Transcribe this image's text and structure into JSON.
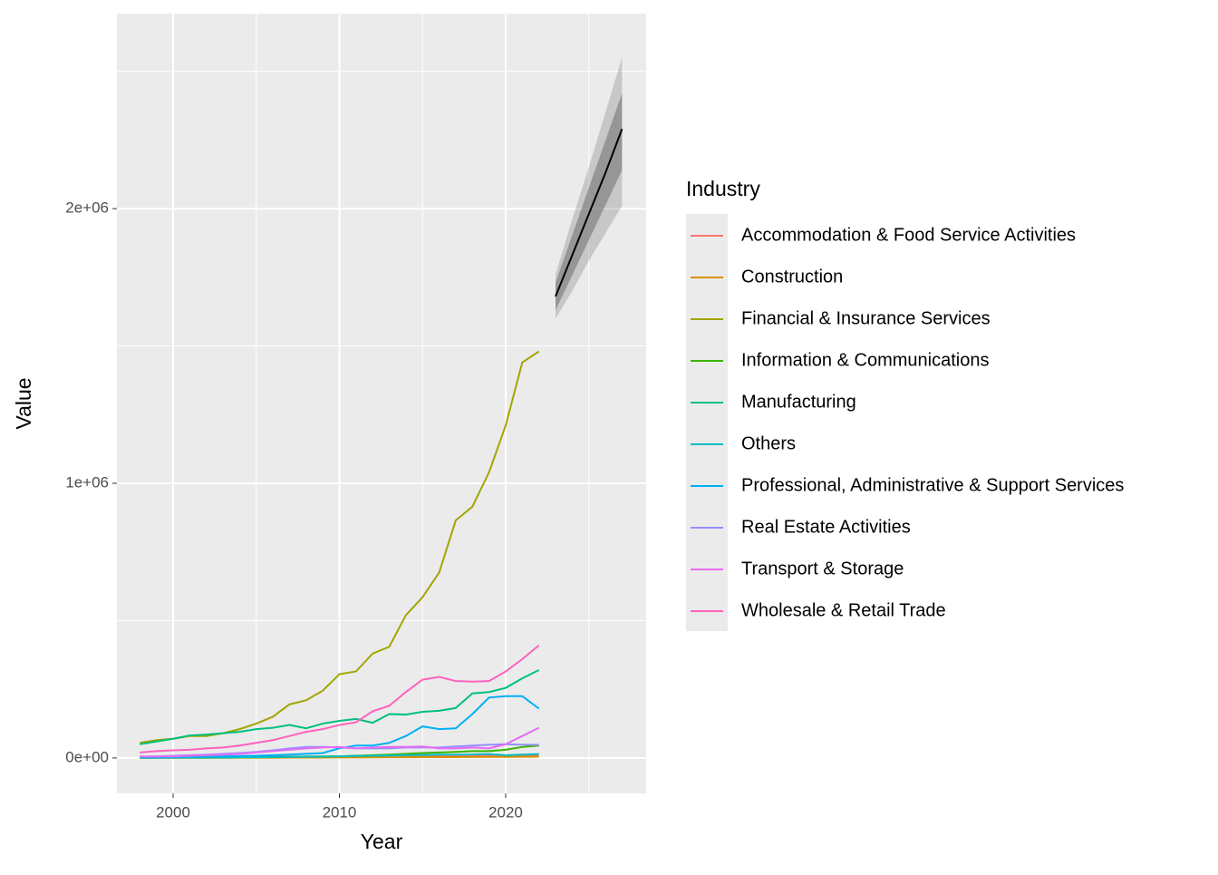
{
  "chart_data": {
    "type": "line",
    "x_label": "Year",
    "y_label": "Value",
    "legend_title": "Industry",
    "legend_position": "right",
    "grid": true,
    "xlim": [
      1996.62,
      2028.45
    ],
    "xticks": [
      2000,
      2010,
      2020
    ],
    "xminor": [
      2005,
      2015,
      2025
    ],
    "ylim": [
      -129000,
      2710000
    ],
    "yticks": [
      {
        "value": 0,
        "label": "0e+00"
      },
      {
        "value": 1000000,
        "label": "1e+06"
      },
      {
        "value": 2000000,
        "label": "2e+06"
      }
    ],
    "yminor": [
      500000,
      1500000,
      2500000
    ],
    "x": [
      1998,
      1999,
      2000,
      2001,
      2002,
      2003,
      2004,
      2005,
      2006,
      2007,
      2008,
      2009,
      2010,
      2011,
      2012,
      2013,
      2014,
      2015,
      2016,
      2017,
      2018,
      2019,
      2020,
      2021,
      2022
    ],
    "series": [
      {
        "name": "Accommodation & Food Service Activities",
        "color": "#F8766D",
        "values": [
          2000,
          2000,
          2500,
          3000,
          3000,
          3500,
          4000,
          4000,
          4500,
          5000,
          5000,
          5000,
          5500,
          6000,
          6000,
          6500,
          7000,
          7000,
          7500,
          8000,
          8000,
          8000,
          6000,
          7000,
          8000
        ]
      },
      {
        "name": "Construction",
        "color": "#D89000",
        "values": [
          500,
          500,
          500,
          600,
          600,
          700,
          800,
          900,
          1000,
          1200,
          1500,
          1500,
          1800,
          2000,
          2200,
          2500,
          2800,
          3000,
          3000,
          3200,
          3500,
          3800,
          4000,
          4200,
          4500
        ]
      },
      {
        "name": "Financial & Insurance Services",
        "color": "#A3A500",
        "values": [
          55000,
          65000,
          70000,
          80000,
          80000,
          90000,
          105000,
          125000,
          150000,
          195000,
          210000,
          245000,
          305000,
          315000,
          380000,
          405000,
          520000,
          585000,
          675000,
          865000,
          915000,
          1040000,
          1210000,
          1440000,
          1480000
        ]
      },
      {
        "name": "Information & Communications",
        "color": "#39B600",
        "values": [
          500,
          500,
          800,
          1000,
          1000,
          1500,
          2000,
          2000,
          3000,
          4000,
          5000,
          5000,
          6000,
          8000,
          10000,
          12000,
          15000,
          18000,
          20000,
          22000,
          25000,
          25000,
          30000,
          40000,
          45000
        ]
      },
      {
        "name": "Manufacturing",
        "color": "#00BF7D",
        "values": [
          50000,
          60000,
          70000,
          82000,
          85000,
          90000,
          95000,
          105000,
          110000,
          120000,
          108000,
          125000,
          135000,
          142000,
          128000,
          160000,
          158000,
          168000,
          172000,
          182000,
          235000,
          240000,
          255000,
          290000,
          320000
        ]
      },
      {
        "name": "Others",
        "color": "#00BFC4",
        "values": [
          1000,
          1000,
          1500,
          1500,
          2000,
          2000,
          2500,
          3000,
          3500,
          4000,
          4500,
          5000,
          6000,
          7000,
          8000,
          9000,
          10000,
          11000,
          12000,
          12000,
          13000,
          14000,
          10000,
          12000,
          14000
        ]
      },
      {
        "name": "Professional, Administrative & Support Services",
        "color": "#00B0F6",
        "values": [
          2000,
          2000,
          3000,
          4000,
          5000,
          6000,
          7000,
          8000,
          10000,
          12000,
          15000,
          18000,
          35000,
          45000,
          45000,
          55000,
          80000,
          115000,
          105000,
          108000,
          160000,
          220000,
          225000,
          225000,
          180000
        ]
      },
      {
        "name": "Real Estate Activities",
        "color": "#9590FF",
        "values": [
          5000,
          6000,
          8000,
          10000,
          12000,
          15000,
          18000,
          22000,
          28000,
          35000,
          40000,
          40000,
          38000,
          35000,
          35000,
          35000,
          38000,
          38000,
          38000,
          42000,
          45000,
          48000,
          50000,
          48000,
          48000
        ]
      },
      {
        "name": "Transport & Storage",
        "color": "#E76BF3",
        "values": [
          5000,
          5000,
          6000,
          8000,
          10000,
          12000,
          15000,
          20000,
          25000,
          30000,
          35000,
          38000,
          40000,
          35000,
          38000,
          40000,
          40000,
          42000,
          35000,
          35000,
          38000,
          35000,
          50000,
          80000,
          110000
        ]
      },
      {
        "name": "Wholesale & Retail Trade",
        "color": "#FF62BC",
        "values": [
          20000,
          25000,
          28000,
          30000,
          35000,
          38000,
          45000,
          55000,
          65000,
          80000,
          95000,
          105000,
          120000,
          130000,
          170000,
          190000,
          240000,
          285000,
          295000,
          280000,
          278000,
          280000,
          315000,
          360000,
          410000
        ]
      }
    ],
    "forecast": {
      "color": "#000000",
      "x": [
        2023,
        2024,
        2025,
        2026,
        2027
      ],
      "values": [
        1680000,
        1830000,
        1980000,
        2130000,
        2290000
      ],
      "lo80": [
        1630000,
        1757000,
        1885000,
        2012000,
        2140000
      ],
      "hi80": [
        1730000,
        1903000,
        2075000,
        2248000,
        2420000
      ],
      "lo95": [
        1600000,
        1700000,
        1810000,
        1910000,
        2010000
      ],
      "hi95": [
        1760000,
        1960000,
        2150000,
        2350000,
        2550000
      ]
    }
  }
}
